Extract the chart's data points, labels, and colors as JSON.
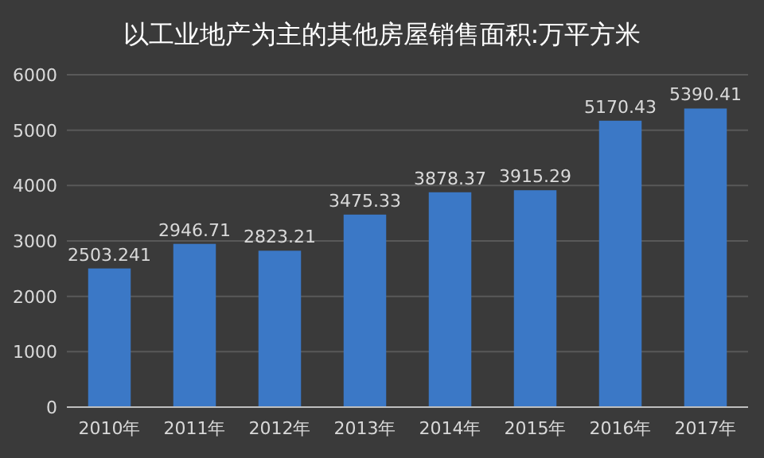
{
  "chart_data": {
    "type": "bar",
    "title": "以工业地产为主的其他房屋销售面积:万平方米",
    "categories": [
      "2010年",
      "2011年",
      "2012年",
      "2013年",
      "2014年",
      "2015年",
      "2016年",
      "2017年"
    ],
    "values": [
      2503.241,
      2946.71,
      2823.21,
      3475.33,
      3878.37,
      3915.29,
      5170.43,
      5390.41
    ],
    "color": "#3b78c6",
    "ylim": [
      0,
      6000
    ],
    "yticks": [
      0,
      1000,
      2000,
      3000,
      4000,
      5000,
      6000
    ],
    "grid": "y",
    "data_labels": true
  }
}
